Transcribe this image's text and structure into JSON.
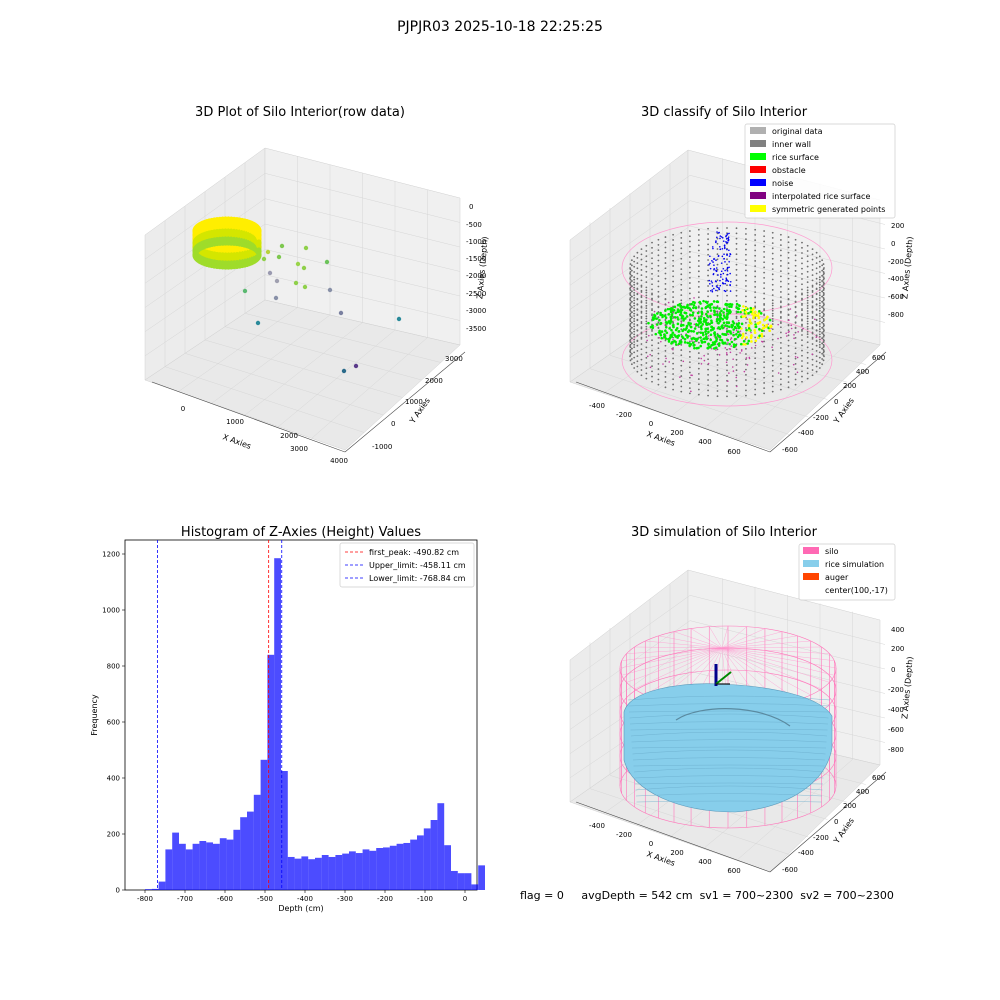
{
  "figure": {
    "suptitle": "PJPJR03 2025-10-18 22:25:25"
  },
  "panels": {
    "raw": {
      "title": "3D Plot of Silo Interior(row data)",
      "xlabel": "X Axies",
      "ylabel": "Y Axies",
      "zlabel": "Z Axies (Depth)",
      "xticks": [
        "0",
        "1000",
        "2000",
        "3000",
        "4000"
      ],
      "yticks": [
        "-1000",
        "0",
        "1000",
        "2000",
        "3000"
      ],
      "zticks": [
        "0",
        "-500",
        "-1000",
        "-1500",
        "-2000",
        "-2500",
        "-3000",
        "-3500"
      ]
    },
    "classify": {
      "title": "3D classify of Silo Interior",
      "xlabel": "X Axies",
      "ylabel": "Y Axies",
      "zlabel": "Z Axies (Depth)",
      "xticks": [
        "-400",
        "-200",
        "0",
        "200",
        "400",
        "600"
      ],
      "yticks": [
        "-600",
        "-400",
        "-200",
        "0",
        "200",
        "400",
        "600"
      ],
      "zticks": [
        "200",
        "0",
        "-200",
        "-400",
        "-600",
        "-800"
      ],
      "legend": [
        {
          "label": "original data",
          "color": "#b0b0b0"
        },
        {
          "label": "inner wall",
          "color": "#808080"
        },
        {
          "label": "rice surface",
          "color": "#00ff00"
        },
        {
          "label": "obstacle",
          "color": "#ff0000"
        },
        {
          "label": "noise",
          "color": "#0000ff"
        },
        {
          "label": "interpolated rice surface",
          "color": "#800080"
        },
        {
          "label": "symmetric generated points",
          "color": "#ffff00"
        }
      ]
    },
    "simulation": {
      "title": "3D simulation of Silo Interior",
      "xlabel": "X Axies",
      "ylabel": "Y Axies",
      "zlabel": "Z Axies (Depth)",
      "xticks": [
        "-400",
        "-200",
        "0",
        "200",
        "400",
        "600"
      ],
      "yticks": [
        "-600",
        "-400",
        "-200",
        "0",
        "200",
        "400",
        "600"
      ],
      "zticks": [
        "400",
        "200",
        "0",
        "-200",
        "-400",
        "-600",
        "-800"
      ],
      "legend": [
        {
          "label": "silo",
          "color": "#ff69b4"
        },
        {
          "label": "rice simulation",
          "color": "#87ceeb"
        },
        {
          "label": "auger",
          "color": "#ff4500"
        },
        {
          "label": "center(100,-17)",
          "color": ""
        }
      ]
    }
  },
  "status": {
    "flag": "flag = 0",
    "avg_depth": "avgDepth = 542 cm",
    "sv1": "sv1 = 700~2300",
    "sv2": "sv2 = 700~2300"
  },
  "chart_data": [
    {
      "type": "scatter",
      "subtype": "3d",
      "title": "3D Plot of Silo Interior(row data)",
      "xlabel": "X Axies",
      "ylabel": "Y Axies",
      "zlabel": "Z Axies (Depth)",
      "xlim": [
        -500,
        4000
      ],
      "ylim": [
        -1000,
        3000
      ],
      "zlim": [
        -3700,
        200
      ]
    },
    {
      "type": "scatter",
      "subtype": "3d",
      "title": "3D classify of Silo Interior",
      "xlabel": "X Axies",
      "ylabel": "Y Axies",
      "zlabel": "Z Axies (Depth)",
      "series": [
        {
          "name": "original data"
        },
        {
          "name": "inner wall"
        },
        {
          "name": "rice surface"
        },
        {
          "name": "obstacle"
        },
        {
          "name": "noise"
        },
        {
          "name": "interpolated rice surface"
        },
        {
          "name": "symmetric generated points"
        }
      ],
      "legend": "top-right"
    },
    {
      "type": "bar",
      "subtype": "histogram",
      "title": "Histogram of Z-Axies (Height) Values",
      "xlabel": "Depth (cm)",
      "ylabel": "Frequency",
      "xlim": [
        -850,
        30
      ],
      "ylim": [
        0,
        1250
      ],
      "xticks": [
        "-800",
        "-700",
        "-600",
        "-500",
        "-400",
        "-300",
        "-200",
        "-100",
        "0"
      ],
      "yticks": [
        "0",
        "200",
        "400",
        "600",
        "800",
        "1000",
        "1200"
      ],
      "bin_width": 17,
      "bin_start": -800,
      "values": [
        3,
        4,
        30,
        145,
        205,
        165,
        145,
        165,
        175,
        170,
        165,
        185,
        180,
        215,
        260,
        280,
        340,
        465,
        840,
        1185,
        425,
        118,
        112,
        120,
        110,
        115,
        125,
        118,
        125,
        130,
        138,
        132,
        145,
        140,
        150,
        152,
        158,
        165,
        168,
        180,
        195,
        220,
        250,
        310,
        160,
        68,
        60,
        60,
        20,
        88
      ],
      "vlines": [
        {
          "label": "first_peak: -490.82 cm",
          "x": -490.82,
          "color": "#ff0000"
        },
        {
          "label": "Upper_limit: -458.11 cm",
          "x": -458.11,
          "color": "#0000ff"
        },
        {
          "label": "Lower_limit: -768.84 cm",
          "x": -768.84,
          "color": "#0000ff"
        }
      ],
      "legend": "top-right"
    },
    {
      "type": "surface",
      "subtype": "3d",
      "title": "3D simulation of Silo Interior",
      "xlabel": "X Axies",
      "ylabel": "Y Axies",
      "zlabel": "Z Axies (Depth)",
      "series": [
        {
          "name": "silo"
        },
        {
          "name": "rice simulation"
        },
        {
          "name": "auger"
        },
        {
          "name": "center(100,-17)"
        }
      ],
      "legend": "top-right"
    }
  ]
}
